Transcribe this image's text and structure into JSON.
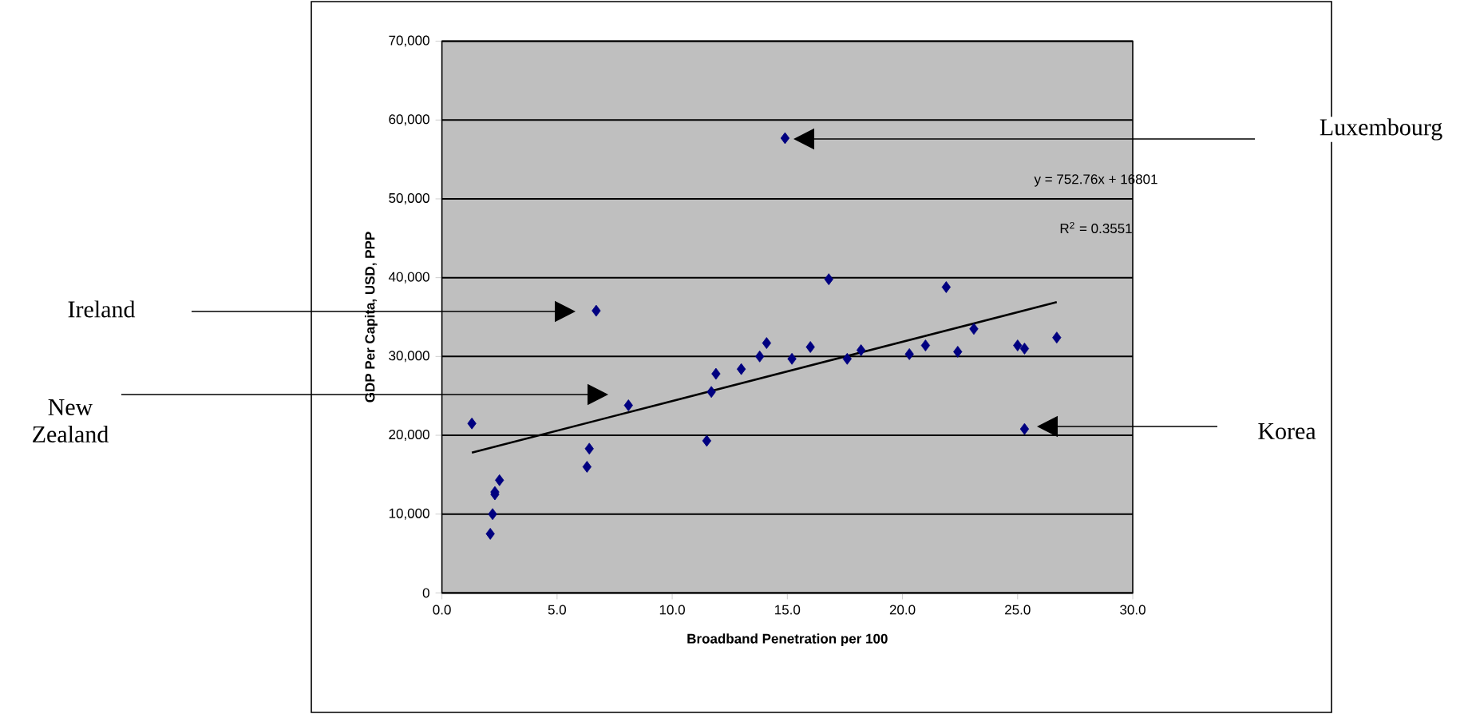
{
  "chart_data": {
    "type": "scatter",
    "xlabel": "Broadband Penetration per 100",
    "ylabel": "GDP Per Capita, USD, PPP",
    "xlim": [
      0,
      30
    ],
    "ylim": [
      0,
      70000
    ],
    "xticks": [
      {
        "value": 0,
        "label": "0.0"
      },
      {
        "value": 5,
        "label": "5.0"
      },
      {
        "value": 10,
        "label": "10.0"
      },
      {
        "value": 15,
        "label": "15.0"
      },
      {
        "value": 20,
        "label": "20.0"
      },
      {
        "value": 25,
        "label": "25.0"
      },
      {
        "value": 30,
        "label": "30.0"
      }
    ],
    "yticks": [
      0,
      {
        "value": 10000,
        "label": "10,000"
      },
      {
        "value": 20000,
        "label": "20,000"
      },
      {
        "value": 30000,
        "label": "30,000"
      },
      {
        "value": 40000,
        "label": "40,000"
      },
      {
        "value": 50000,
        "label": "50,000"
      },
      {
        "value": 60000,
        "label": "60,000"
      },
      {
        "value": 70000,
        "label": "70,000"
      }
    ],
    "grid": "y",
    "marker": "diamond",
    "series": [
      {
        "color": "#000080",
        "x": [
          1.3,
          2.1,
          2.2,
          2.3,
          2.3,
          2.5,
          6.3,
          6.4,
          6.7,
          8.1,
          11.5,
          11.7,
          11.9,
          13.0,
          13.8,
          14.1,
          14.9,
          15.2,
          16.0,
          16.8,
          17.6,
          18.2,
          20.3,
          21.0,
          21.9,
          22.4,
          23.1,
          25.0,
          25.3,
          25.3,
          26.7
        ],
        "values": [
          21500,
          7500,
          10000,
          12500,
          12800,
          14300,
          16000,
          18300,
          35800,
          23800,
          19300,
          25500,
          27800,
          28400,
          30000,
          31700,
          57700,
          29700,
          31200,
          39800,
          29700,
          30800,
          30300,
          31400,
          38800,
          30600,
          33500,
          31400,
          31000,
          20800,
          32400
        ]
      },
      {
        "type": "line",
        "color": "#000000",
        "marker": "none",
        "x": [
          1.3,
          26.7
        ],
        "values": [
          17800,
          36900
        ]
      }
    ],
    "annotations": [
      "Luxembourg",
      "Ireland",
      "New Zealand",
      "Korea",
      "y = 752.76x + 16801",
      "R$^{2}$ = 0.3551"
    ]
  }
}
